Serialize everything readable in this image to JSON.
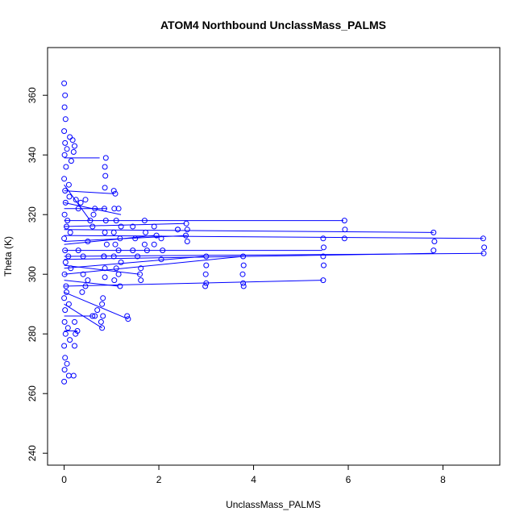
{
  "chart_data": {
    "type": "scatter",
    "title": "ATOM4 Northbound UnclassMass_PALMS",
    "xlabel": "UnclassMass_PALMS",
    "ylabel": "Theta (K)",
    "xlim": [
      -0.35,
      9.2
    ],
    "ylim": [
      236,
      376
    ],
    "x_ticks": [
      0,
      2,
      4,
      6,
      8
    ],
    "y_ticks": [
      240,
      260,
      280,
      300,
      320,
      340,
      360
    ],
    "grid": false,
    "legend": "none",
    "marker": "open-circle",
    "connected_lines": true,
    "color": "#0000ff",
    "points": [
      [
        0.0,
        264
      ],
      [
        0.01,
        268
      ],
      [
        0.02,
        272
      ],
      [
        0.0,
        276
      ],
      [
        0.03,
        280
      ],
      [
        0.01,
        284
      ],
      [
        0.02,
        288
      ],
      [
        0.0,
        292
      ],
      [
        0.04,
        296
      ],
      [
        0.01,
        300
      ],
      [
        0.03,
        304
      ],
      [
        0.02,
        308
      ],
      [
        0.0,
        312
      ],
      [
        0.05,
        316
      ],
      [
        0.01,
        320
      ],
      [
        0.03,
        324
      ],
      [
        0.02,
        328
      ],
      [
        0.0,
        332
      ],
      [
        0.04,
        336
      ],
      [
        0.01,
        340
      ],
      [
        0.02,
        344
      ],
      [
        0.0,
        348
      ],
      [
        0.03,
        352
      ],
      [
        0.01,
        356
      ],
      [
        0.02,
        360
      ],
      [
        0.0,
        364
      ],
      [
        0.06,
        270
      ],
      [
        0.08,
        282
      ],
      [
        0.05,
        294
      ],
      [
        0.09,
        306
      ],
      [
        0.07,
        318
      ],
      [
        0.1,
        330
      ],
      [
        0.06,
        342
      ],
      [
        0.12,
        346
      ],
      [
        0.15,
        338
      ],
      [
        0.11,
        326
      ],
      [
        0.13,
        314
      ],
      [
        0.14,
        302
      ],
      [
        0.1,
        290
      ],
      [
        0.12,
        278
      ],
      [
        0.1,
        266
      ],
      [
        0.2,
        266
      ],
      [
        0.18,
        345
      ],
      [
        0.22,
        343
      ],
      [
        0.2,
        341
      ],
      [
        0.22,
        284
      ],
      [
        0.24,
        280
      ],
      [
        0.22,
        276
      ],
      [
        0.28,
        281
      ],
      [
        0.25,
        325
      ],
      [
        0.3,
        322
      ],
      [
        0.35,
        324
      ],
      [
        0.45,
        325
      ],
      [
        0.3,
        308
      ],
      [
        0.4,
        306
      ],
      [
        0.5,
        311
      ],
      [
        0.55,
        318
      ],
      [
        0.6,
        316
      ],
      [
        0.62,
        320
      ],
      [
        0.65,
        322
      ],
      [
        0.4,
        300
      ],
      [
        0.45,
        296
      ],
      [
        0.38,
        294
      ],
      [
        0.5,
        298
      ],
      [
        0.6,
        286
      ],
      [
        0.65,
        286
      ],
      [
        0.7,
        288
      ],
      [
        0.8,
        282
      ],
      [
        0.78,
        284
      ],
      [
        0.82,
        286
      ],
      [
        0.8,
        290
      ],
      [
        0.82,
        292
      ],
      [
        0.88,
        339
      ],
      [
        0.86,
        336
      ],
      [
        0.87,
        333
      ],
      [
        0.86,
        329
      ],
      [
        0.85,
        322
      ],
      [
        0.88,
        318
      ],
      [
        0.86,
        314
      ],
      [
        0.9,
        310
      ],
      [
        0.84,
        306
      ],
      [
        0.86,
        302
      ],
      [
        0.86,
        299
      ],
      [
        0.84,
        306
      ],
      [
        1.05,
        328
      ],
      [
        1.08,
        327
      ],
      [
        1.06,
        322
      ],
      [
        1.1,
        318
      ],
      [
        1.05,
        314
      ],
      [
        1.08,
        310
      ],
      [
        1.05,
        306
      ],
      [
        1.1,
        302
      ],
      [
        1.06,
        298
      ],
      [
        1.15,
        322
      ],
      [
        1.2,
        316
      ],
      [
        1.18,
        312
      ],
      [
        1.15,
        308
      ],
      [
        1.2,
        304
      ],
      [
        1.15,
        300
      ],
      [
        1.18,
        296
      ],
      [
        1.35,
        285
      ],
      [
        1.33,
        286
      ],
      [
        1.45,
        316
      ],
      [
        1.5,
        312
      ],
      [
        1.45,
        308
      ],
      [
        1.55,
        306
      ],
      [
        1.62,
        302
      ],
      [
        1.6,
        300
      ],
      [
        1.62,
        298
      ],
      [
        1.7,
        318
      ],
      [
        1.72,
        314
      ],
      [
        1.7,
        310
      ],
      [
        1.75,
        308
      ],
      [
        1.9,
        316
      ],
      [
        1.95,
        313
      ],
      [
        1.9,
        310
      ],
      [
        2.05,
        312
      ],
      [
        2.08,
        308
      ],
      [
        2.05,
        305
      ],
      [
        2.4,
        315
      ],
      [
        2.4,
        315
      ],
      [
        2.58,
        317
      ],
      [
        2.6,
        315
      ],
      [
        2.57,
        313
      ],
      [
        2.6,
        311
      ],
      [
        3.0,
        306
      ],
      [
        3.0,
        303
      ],
      [
        2.99,
        300
      ],
      [
        3.0,
        297
      ],
      [
        2.98,
        296
      ],
      [
        3.78,
        306
      ],
      [
        3.79,
        303
      ],
      [
        3.77,
        300
      ],
      [
        3.78,
        297
      ],
      [
        3.79,
        296
      ],
      [
        5.47,
        312
      ],
      [
        5.48,
        309
      ],
      [
        5.47,
        306
      ],
      [
        5.48,
        303
      ],
      [
        5.47,
        298
      ],
      [
        5.92,
        318
      ],
      [
        5.93,
        315
      ],
      [
        5.92,
        312
      ],
      [
        7.8,
        314
      ],
      [
        7.82,
        311
      ],
      [
        7.8,
        308
      ],
      [
        8.85,
        312
      ],
      [
        8.87,
        309
      ],
      [
        8.86,
        307
      ]
    ],
    "lines": [
      [
        [
          0.0,
          339
        ],
        [
          0.75,
          339
        ]
      ],
      [
        [
          0.0,
          328
        ],
        [
          1.05,
          327
        ]
      ],
      [
        [
          0.0,
          324
        ],
        [
          1.2,
          320
        ]
      ],
      [
        [
          0.0,
          318
        ],
        [
          5.9,
          318
        ]
      ],
      [
        [
          0.0,
          315
        ],
        [
          7.8,
          314
        ]
      ],
      [
        [
          0.0,
          313
        ],
        [
          8.85,
          312
        ]
      ],
      [
        [
          0.0,
          306
        ],
        [
          8.85,
          307
        ]
      ],
      [
        [
          0.0,
          305
        ],
        [
          7.8,
          307
        ]
      ],
      [
        [
          0.0,
          308
        ],
        [
          5.45,
          308
        ]
      ],
      [
        [
          0.0,
          296
        ],
        [
          5.45,
          298
        ]
      ],
      [
        [
          0.0,
          300
        ],
        [
          3.78,
          306
        ]
      ],
      [
        [
          0.0,
          302
        ],
        [
          2.95,
          306
        ]
      ],
      [
        [
          0.0,
          311
        ],
        [
          2.6,
          313
        ]
      ],
      [
        [
          0.0,
          316
        ],
        [
          2.55,
          317
        ]
      ],
      [
        [
          0.0,
          310
        ],
        [
          1.9,
          313
        ]
      ],
      [
        [
          0.0,
          303
        ],
        [
          1.6,
          300
        ]
      ],
      [
        [
          0.0,
          298
        ],
        [
          1.15,
          296
        ]
      ],
      [
        [
          0.0,
          294
        ],
        [
          1.35,
          285
        ]
      ],
      [
        [
          0.0,
          290
        ],
        [
          0.8,
          282
        ]
      ],
      [
        [
          0.0,
          286
        ],
        [
          0.6,
          286
        ]
      ],
      [
        [
          0.0,
          281
        ],
        [
          0.28,
          281
        ]
      ],
      [
        [
          0.0,
          322
        ],
        [
          0.9,
          322
        ]
      ],
      [
        [
          0.0,
          330
        ],
        [
          0.55,
          318
        ]
      ]
    ]
  }
}
